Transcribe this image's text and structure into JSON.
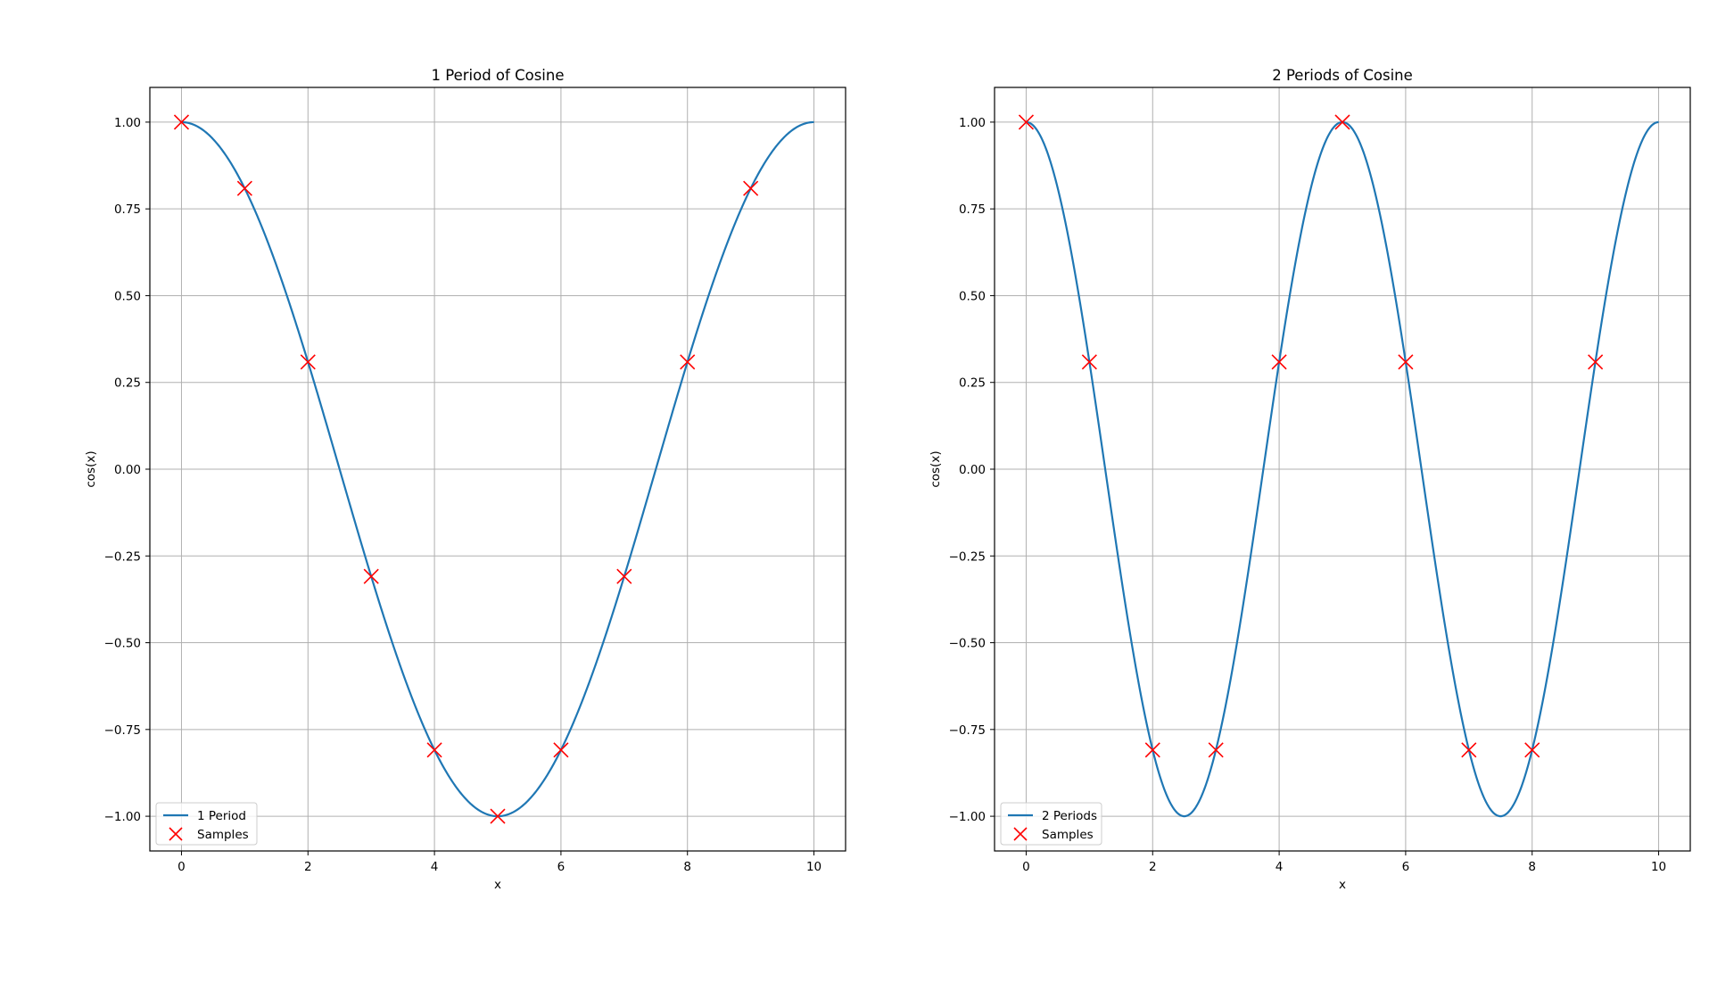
{
  "chart_data": [
    {
      "type": "line",
      "title": "1 Period of Cosine",
      "xlabel": "x",
      "ylabel": "cos(x)",
      "xlim": [
        -0.5,
        10.5
      ],
      "ylim": [
        -1.1,
        1.1
      ],
      "xticks": [
        "0",
        "2",
        "4",
        "6",
        "8",
        "10"
      ],
      "xtick_values": [
        0,
        2,
        4,
        6,
        8,
        10
      ],
      "yticks": [
        "−1.00",
        "−0.75",
        "−0.50",
        "−0.25",
        "0.00",
        "0.25",
        "0.50",
        "0.75",
        "1.00"
      ],
      "ytick_values": [
        -1.0,
        -0.75,
        -0.5,
        -0.25,
        0.0,
        0.25,
        0.5,
        0.75,
        1.0
      ],
      "grid": true,
      "legend_location": "lower left",
      "series": [
        {
          "name": "1 Period",
          "kind": "line",
          "color": "#1f77b4",
          "function": "cos(2*pi*x/10)",
          "x_range": [
            0,
            10
          ]
        },
        {
          "name": "Samples",
          "kind": "scatter",
          "marker": "x",
          "color": "#ff0000",
          "x": [
            0,
            1,
            2,
            3,
            4,
            5,
            6,
            7,
            8,
            9
          ],
          "y": [
            1.0,
            0.809,
            0.309,
            -0.309,
            -0.809,
            -1.0,
            -0.809,
            -0.309,
            0.309,
            0.809
          ]
        }
      ]
    },
    {
      "type": "line",
      "title": "2 Periods of Cosine",
      "xlabel": "x",
      "ylabel": "cos(x)",
      "xlim": [
        -0.5,
        10.5
      ],
      "ylim": [
        -1.1,
        1.1
      ],
      "xticks": [
        "0",
        "2",
        "4",
        "6",
        "8",
        "10"
      ],
      "xtick_values": [
        0,
        2,
        4,
        6,
        8,
        10
      ],
      "yticks": [
        "−1.00",
        "−0.75",
        "−0.50",
        "−0.25",
        "0.00",
        "0.25",
        "0.50",
        "0.75",
        "1.00"
      ],
      "ytick_values": [
        -1.0,
        -0.75,
        -0.5,
        -0.25,
        0.0,
        0.25,
        0.5,
        0.75,
        1.0
      ],
      "grid": true,
      "legend_location": "lower left",
      "series": [
        {
          "name": "2 Periods",
          "kind": "line",
          "color": "#1f77b4",
          "function": "cos(2*pi*2*x/10)",
          "x_range": [
            0,
            10
          ]
        },
        {
          "name": "Samples",
          "kind": "scatter",
          "marker": "x",
          "color": "#ff0000",
          "x": [
            0,
            1,
            2,
            3,
            4,
            5,
            6,
            7,
            8,
            9
          ],
          "y": [
            1.0,
            0.309,
            -0.809,
            -0.809,
            0.309,
            1.0,
            0.309,
            -0.809,
            -0.809,
            0.309
          ]
        }
      ]
    }
  ]
}
